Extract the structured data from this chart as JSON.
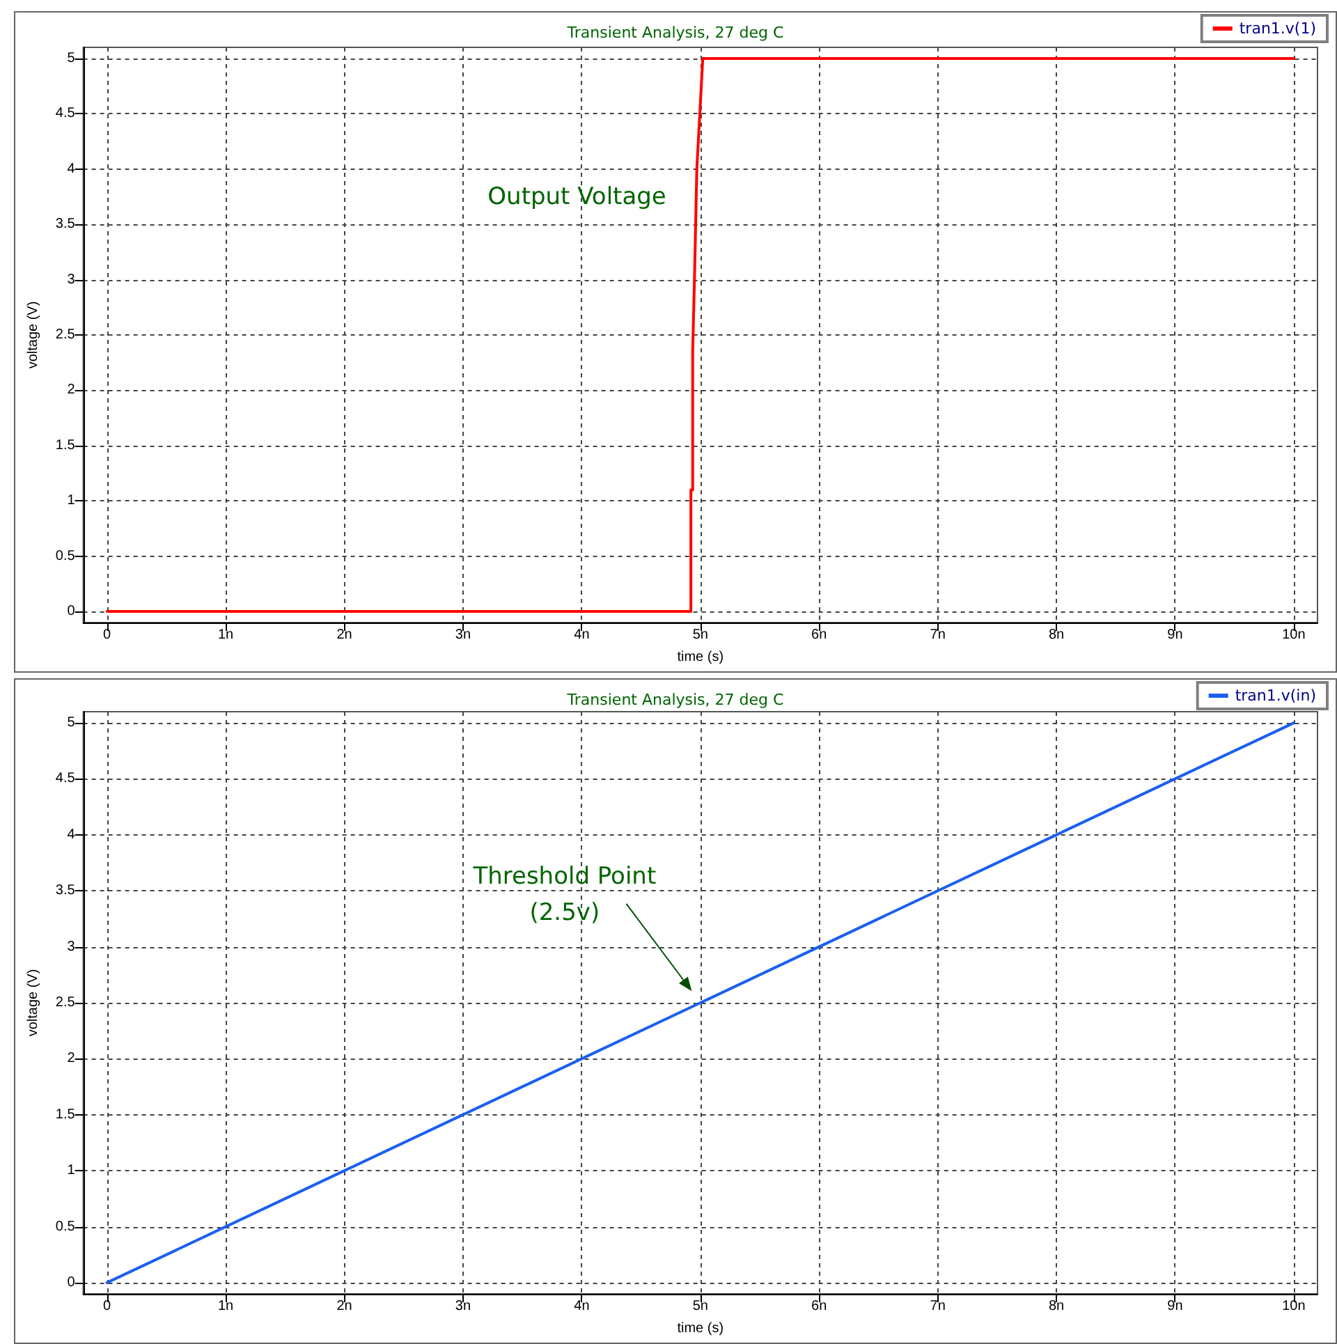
{
  "chart_data": [
    {
      "type": "line",
      "title": "Transient Analysis, 27 deg C",
      "xlabel": "time (s)",
      "ylabel": "voltage (V)",
      "annotations": [
        "Output Voltage"
      ],
      "series": [
        {
          "name": "tran1.v(1)",
          "color": "#ff0000",
          "x": [
            0,
            4.92,
            4.92,
            4.935,
            4.935,
            4.95,
            4.97,
            5.02,
            10
          ],
          "values": [
            0,
            0,
            1.1,
            1.1,
            2.35,
            3,
            4,
            5,
            5
          ]
        }
      ],
      "xlim": [
        -0.2,
        10.2
      ],
      "xticks": [
        0,
        {
          "value": 1,
          "label": "1n"
        },
        {
          "value": 2,
          "label": "2n"
        },
        {
          "value": 3,
          "label": "3n"
        },
        {
          "value": 4,
          "label": "4n"
        },
        {
          "value": 5,
          "label": "5n"
        },
        {
          "value": 6,
          "label": "6n"
        },
        {
          "value": 7,
          "label": "7n"
        },
        {
          "value": 8,
          "label": "8n"
        },
        {
          "value": 9,
          "label": "9n"
        },
        {
          "value": 10,
          "label": "10n"
        }
      ],
      "ylim": [
        -0.1,
        5.1
      ],
      "yticks": [
        0,
        0.5,
        1,
        1.5,
        2,
        2.5,
        3,
        3.5,
        4,
        4.5,
        5
      ],
      "grid": true,
      "legend": "top right",
      "marker": "none",
      "line_style": "solid"
    },
    {
      "type": "line",
      "title": "Transient Analysis, 27 deg C",
      "xlabel": "time (s)",
      "ylabel": "voltage (V)",
      "annotations": [
        "Threshold Point\n(2.5v)"
      ],
      "series": [
        {
          "name": "tran1.v(in)",
          "color": "#1a5ff0",
          "x": [
            0,
            2,
            4,
            5,
            6,
            8,
            10
          ],
          "values": [
            0,
            1,
            2,
            2.5,
            3,
            4,
            5
          ]
        }
      ],
      "xlim": [
        -0.2,
        10.2
      ],
      "xticks": [
        0,
        {
          "value": 1,
          "label": "1n"
        },
        {
          "value": 2,
          "label": "2n"
        },
        {
          "value": 3,
          "label": "3n"
        },
        {
          "value": 4,
          "label": "4n"
        },
        {
          "value": 5,
          "label": "5n"
        },
        {
          "value": 6,
          "label": "6n"
        },
        {
          "value": 7,
          "label": "7n"
        },
        {
          "value": 8,
          "label": "8n"
        },
        {
          "value": 9,
          "label": "9n"
        },
        {
          "value": 10,
          "label": "10n"
        }
      ],
      "ylim": [
        -0.1,
        5.1
      ],
      "yticks": [
        0,
        0.5,
        1,
        1.5,
        2,
        2.5,
        3,
        3.5,
        4,
        4.5,
        5
      ],
      "grid": true,
      "legend": "top right",
      "marker": "none",
      "line_style": "solid"
    }
  ]
}
